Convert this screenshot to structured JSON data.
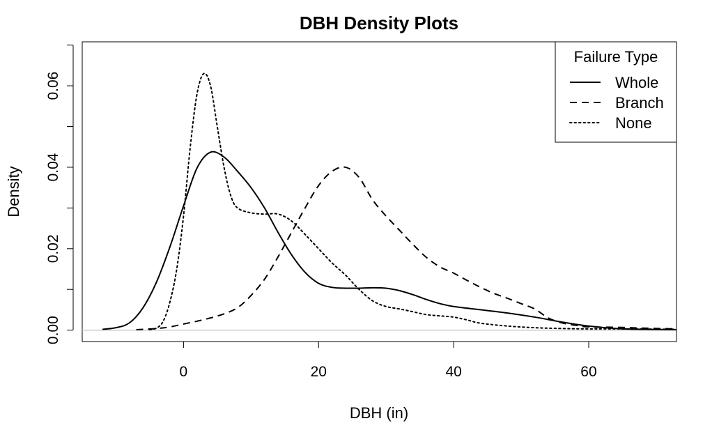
{
  "chart_data": {
    "type": "line",
    "title": "DBH Density Plots",
    "xlabel": "DBH (in)",
    "ylabel": "Density",
    "xlim": [
      -15,
      73
    ],
    "ylim": [
      -0.0028,
      0.0708
    ],
    "x_ticks": [
      0,
      20,
      40,
      60
    ],
    "x_tick_labels": [
      "0",
      "20",
      "40",
      "60"
    ],
    "y_ticks": [
      0.0,
      0.01,
      0.02,
      0.03,
      0.04,
      0.05,
      0.06,
      0.07
    ],
    "y_tick_labels": [
      "0.00",
      "",
      "0.02",
      "",
      "0.04",
      "",
      "0.06",
      ""
    ],
    "zero_line": true,
    "grid": false,
    "legend": {
      "title": "Failure Type",
      "position": "top-right",
      "entries": [
        {
          "label": "Whole",
          "line_style": "solid"
        },
        {
          "label": "Branch",
          "line_style": "dashed"
        },
        {
          "label": "None",
          "line_style": "dotted"
        }
      ]
    },
    "series": [
      {
        "name": "Whole",
        "line_style": "solid",
        "points": [
          [
            -12,
            0.0002
          ],
          [
            -10,
            0.0006
          ],
          [
            -8,
            0.0018
          ],
          [
            -6,
            0.0055
          ],
          [
            -4,
            0.0118
          ],
          [
            -2,
            0.0205
          ],
          [
            0,
            0.0305
          ],
          [
            2,
            0.0398
          ],
          [
            4,
            0.0437
          ],
          [
            6,
            0.0425
          ],
          [
            8,
            0.039
          ],
          [
            10,
            0.035
          ],
          [
            12,
            0.03
          ],
          [
            14,
            0.024
          ],
          [
            16,
            0.0185
          ],
          [
            18,
            0.0142
          ],
          [
            20,
            0.0115
          ],
          [
            22,
            0.0105
          ],
          [
            24,
            0.0103
          ],
          [
            26,
            0.0103
          ],
          [
            28,
            0.0104
          ],
          [
            30,
            0.0103
          ],
          [
            32,
            0.0097
          ],
          [
            34,
            0.0087
          ],
          [
            36,
            0.0075
          ],
          [
            38,
            0.0065
          ],
          [
            40,
            0.0058
          ],
          [
            44,
            0.005
          ],
          [
            48,
            0.0042
          ],
          [
            52,
            0.0032
          ],
          [
            56,
            0.002
          ],
          [
            60,
            0.001
          ],
          [
            64,
            0.0004
          ],
          [
            68,
            0.0002
          ],
          [
            73,
            0.0001
          ]
        ]
      },
      {
        "name": "Branch",
        "line_style": "dashed",
        "points": [
          [
            -7,
            0.0001
          ],
          [
            -4,
            0.0004
          ],
          [
            -2,
            0.0008
          ],
          [
            0,
            0.0015
          ],
          [
            2,
            0.0022
          ],
          [
            4,
            0.003
          ],
          [
            6,
            0.004
          ],
          [
            8,
            0.0055
          ],
          [
            10,
            0.0085
          ],
          [
            12,
            0.0125
          ],
          [
            14,
            0.018
          ],
          [
            16,
            0.024
          ],
          [
            18,
            0.03
          ],
          [
            20,
            0.0355
          ],
          [
            22,
            0.039
          ],
          [
            24,
            0.04
          ],
          [
            26,
            0.0375
          ],
          [
            28,
            0.032
          ],
          [
            30,
            0.028
          ],
          [
            32,
            0.0245
          ],
          [
            34,
            0.021
          ],
          [
            36,
            0.0178
          ],
          [
            38,
            0.0155
          ],
          [
            40,
            0.014
          ],
          [
            42,
            0.0122
          ],
          [
            44,
            0.0105
          ],
          [
            46,
            0.009
          ],
          [
            48,
            0.0078
          ],
          [
            50,
            0.0065
          ],
          [
            52,
            0.0052
          ],
          [
            54,
            0.003
          ],
          [
            56,
            0.0018
          ],
          [
            58,
            0.0012
          ],
          [
            60,
            0.0008
          ],
          [
            64,
            0.0007
          ],
          [
            68,
            0.0005
          ],
          [
            73,
            0.0003
          ]
        ]
      },
      {
        "name": "None",
        "line_style": "dotted",
        "points": [
          [
            -5,
            0.0001
          ],
          [
            -4,
            0.0005
          ],
          [
            -3,
            0.0022
          ],
          [
            -2,
            0.007
          ],
          [
            -1,
            0.015
          ],
          [
            0,
            0.028
          ],
          [
            1,
            0.045
          ],
          [
            2,
            0.058
          ],
          [
            3,
            0.063
          ],
          [
            4,
            0.06
          ],
          [
            5,
            0.05
          ],
          [
            6,
            0.04
          ],
          [
            7,
            0.033
          ],
          [
            8,
            0.03
          ],
          [
            10,
            0.0288
          ],
          [
            12,
            0.0285
          ],
          [
            14,
            0.0285
          ],
          [
            16,
            0.0268
          ],
          [
            18,
            0.0235
          ],
          [
            20,
            0.02
          ],
          [
            22,
            0.0165
          ],
          [
            24,
            0.0135
          ],
          [
            26,
            0.01
          ],
          [
            28,
            0.0072
          ],
          [
            30,
            0.0058
          ],
          [
            32,
            0.0052
          ],
          [
            34,
            0.0045
          ],
          [
            36,
            0.0038
          ],
          [
            38,
            0.0035
          ],
          [
            40,
            0.0032
          ],
          [
            42,
            0.0025
          ],
          [
            44,
            0.0017
          ],
          [
            48,
            0.001
          ],
          [
            52,
            0.0006
          ],
          [
            56,
            0.0004
          ],
          [
            60,
            0.0003
          ],
          [
            65,
            0.0003
          ],
          [
            73,
            0.0002
          ]
        ]
      }
    ]
  }
}
